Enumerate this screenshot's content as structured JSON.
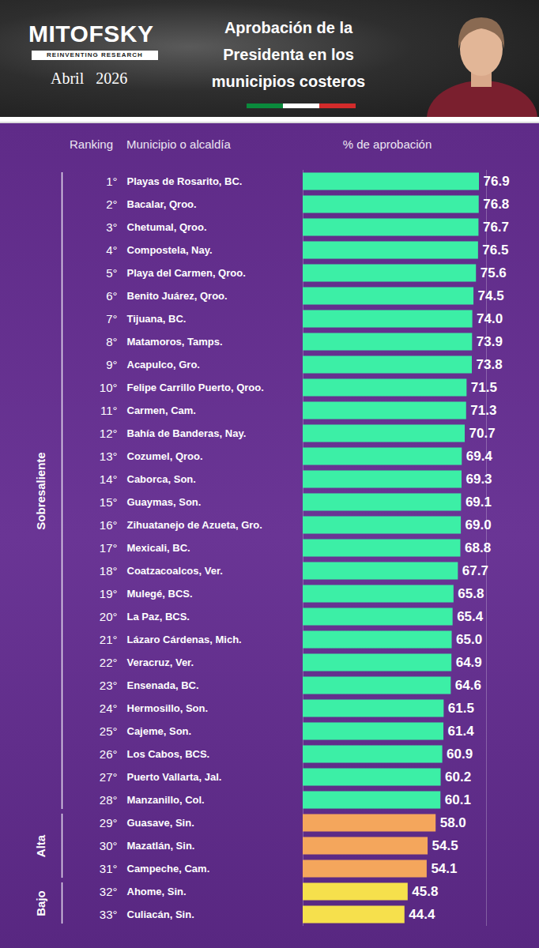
{
  "chart_data": {
    "type": "bar",
    "orientation": "horizontal",
    "brand": "MITOFSKY",
    "tagline": "REINVENTING RESEARCH",
    "date": "Abril   2026",
    "title": "Aprobación de la Presidenta en los municipios costeros",
    "headers": [
      "Ranking",
      "Municipio o alcaldía",
      "% de aprobación"
    ],
    "ranks": [
      "1°",
      "2°",
      "3°",
      "4°",
      "5°",
      "6°",
      "7°",
      "8°",
      "9°",
      "10°",
      "11°",
      "12°",
      "13°",
      "14°",
      "15°",
      "16°",
      "17°",
      "18°",
      "19°",
      "20°",
      "21°",
      "22°",
      "23°",
      "24°",
      "25°",
      "26°",
      "27°",
      "28°",
      "29°",
      "30°",
      "31°",
      "32°",
      "33°"
    ],
    "categories": [
      "Playas de Rosarito, BC.",
      "Bacalar, Qroo.",
      "Chetumal, Qroo.",
      "Compostela, Nay.",
      "Playa del Carmen, Qroo.",
      "Benito Juárez, Qroo.",
      "Tijuana, BC.",
      "Matamoros, Tamps.",
      "Acapulco, Gro.",
      "Felipe Carrillo Puerto, Qroo.",
      "Carmen, Cam.",
      "Bahía de Banderas, Nay.",
      "Cozumel, Qroo.",
      "Caborca, Son.",
      "Guaymas, Son.",
      "Zihuatanejo de Azueta, Gro.",
      "Mexicali, BC.",
      "Coatzacoalcos, Ver.",
      "Mulegé, BCS.",
      "La Paz, BCS.",
      "Lázaro Cárdenas, Mich.",
      "Veracruz, Ver.",
      "Ensenada, BC.",
      "Hermosillo, Son.",
      "Cajeme, Son.",
      "Los Cabos, BCS.",
      "Puerto Vallarta, Jal.",
      "Manzanillo, Col.",
      "Guasave, Sin.",
      "Mazatlán, Sin.",
      "Campeche, Cam.",
      "Ahome, Sin.",
      "Culiacán, Sin."
    ],
    "series": [
      {
        "name": "Sobresaliente",
        "color": "#3cefa6",
        "values": [
          76.9,
          76.8,
          76.7,
          76.5,
          75.6,
          74.5,
          74.0,
          73.9,
          73.8,
          71.5,
          71.3,
          70.7,
          69.4,
          69.3,
          69.1,
          69.0,
          68.8,
          67.7,
          65.8,
          65.4,
          65.0,
          64.9,
          64.6,
          61.5,
          61.4,
          60.9,
          60.2,
          60.1,
          null,
          null,
          null,
          null,
          null
        ],
        "value_labels": [
          "76.9",
          "76.8",
          "76.7",
          "76.5",
          "75.6",
          "74.5",
          "74.0",
          "73.9",
          "73.8",
          "71.5",
          "71.3",
          "70.7",
          "69.4",
          "69.3",
          "69.1",
          "69.0",
          "68.8",
          "67.7",
          "65.8",
          "65.4",
          "65.0",
          "64.9",
          "64.6",
          "61.5",
          "61.4",
          "60.9",
          "60.2",
          "60.1",
          null,
          null,
          null,
          null,
          null
        ]
      },
      {
        "name": "Alta",
        "color": "#f4a65c",
        "values": [
          null,
          null,
          null,
          null,
          null,
          null,
          null,
          null,
          null,
          null,
          null,
          null,
          null,
          null,
          null,
          null,
          null,
          null,
          null,
          null,
          null,
          null,
          null,
          null,
          null,
          null,
          null,
          null,
          58.0,
          54.5,
          54.1,
          null,
          null
        ],
        "value_labels": [
          null,
          null,
          null,
          null,
          null,
          null,
          null,
          null,
          null,
          null,
          null,
          null,
          null,
          null,
          null,
          null,
          null,
          null,
          null,
          null,
          null,
          null,
          null,
          null,
          null,
          null,
          null,
          null,
          "58.0",
          "54.5",
          "54.1",
          null,
          null
        ]
      },
      {
        "name": "Bajo",
        "color": "#f6e04c",
        "values": [
          null,
          null,
          null,
          null,
          null,
          null,
          null,
          null,
          null,
          null,
          null,
          null,
          null,
          null,
          null,
          null,
          null,
          null,
          null,
          null,
          null,
          null,
          null,
          null,
          null,
          null,
          null,
          null,
          null,
          null,
          null,
          45.8,
          44.4
        ],
        "value_labels": [
          null,
          null,
          null,
          null,
          null,
          null,
          null,
          null,
          null,
          null,
          null,
          null,
          null,
          null,
          null,
          null,
          null,
          null,
          null,
          null,
          null,
          null,
          null,
          null,
          null,
          null,
          null,
          null,
          null,
          null,
          null,
          "45.8",
          "44.4"
        ]
      }
    ],
    "data_labels": true,
    "xlim": [
      0,
      80
    ],
    "xticks": [],
    "tick_labels": false,
    "grid": false
  }
}
